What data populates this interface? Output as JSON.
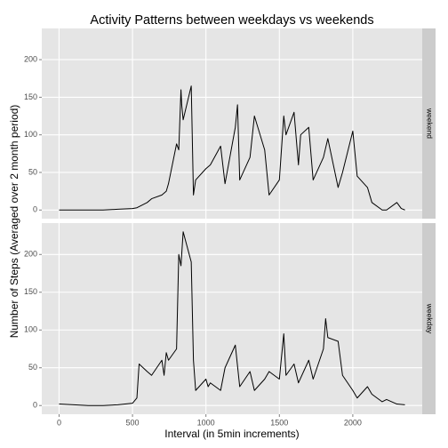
{
  "chart_data": [
    {
      "type": "line",
      "title": "Activity Patterns between weekdays vs weekends",
      "y_label": "Number of Steps (Averaged over 2 month period)",
      "strip": "weekend",
      "xlim": [
        -117.75,
        2472.75
      ],
      "xticks": [
        0,
        500,
        1000,
        1500,
        2000
      ],
      "ylim": [
        -11.5,
        241.5
      ],
      "yticks": [
        0,
        50,
        100,
        150,
        200
      ],
      "grid": true,
      "series": [
        {
          "name": "weekend",
          "color": "#000000",
          "x": [
            0,
            100,
            200,
            300,
            400,
            500,
            530,
            600,
            630,
            700,
            730,
            745,
            800,
            815,
            830,
            835,
            845,
            900,
            915,
            930,
            1000,
            1030,
            1100,
            1130,
            1200,
            1215,
            1230,
            1300,
            1330,
            1400,
            1430,
            1500,
            1530,
            1545,
            1600,
            1630,
            1645,
            1700,
            1730,
            1800,
            1830,
            1900,
            1930,
            2000,
            2030,
            2100,
            2130,
            2200,
            2230,
            2300,
            2330,
            2355
          ],
          "values": [
            0,
            0,
            0,
            0,
            1,
            2,
            3,
            10,
            15,
            20,
            25,
            35,
            88,
            80,
            160,
            140,
            120,
            165,
            20,
            40,
            55,
            60,
            85,
            35,
            110,
            140,
            40,
            70,
            125,
            80,
            20,
            40,
            125,
            100,
            130,
            60,
            100,
            110,
            40,
            70,
            95,
            30,
            50,
            105,
            45,
            30,
            10,
            0,
            0,
            10,
            2,
            0
          ]
        }
      ]
    },
    {
      "type": "line",
      "x_label": "Interval (in 5min increments)",
      "strip": "weekday",
      "xlim": [
        -117.75,
        2472.75
      ],
      "xticks": [
        0,
        500,
        1000,
        1500,
        2000
      ],
      "ylim": [
        -11.5,
        241.5
      ],
      "yticks": [
        0,
        50,
        100,
        150,
        200
      ],
      "grid": true,
      "series": [
        {
          "name": "weekday",
          "color": "#000000",
          "x": [
            0,
            100,
            200,
            300,
            400,
            500,
            530,
            545,
            600,
            630,
            700,
            715,
            730,
            745,
            800,
            815,
            830,
            845,
            900,
            915,
            930,
            1000,
            1015,
            1030,
            1100,
            1130,
            1200,
            1230,
            1300,
            1330,
            1400,
            1430,
            1500,
            1530,
            1545,
            1600,
            1630,
            1700,
            1730,
            1800,
            1815,
            1830,
            1900,
            1930,
            2000,
            2030,
            2100,
            2130,
            2200,
            2230,
            2300,
            2355
          ],
          "values": [
            2,
            1,
            0,
            0,
            1,
            3,
            10,
            55,
            45,
            40,
            60,
            40,
            70,
            60,
            75,
            200,
            185,
            230,
            190,
            60,
            20,
            35,
            25,
            30,
            20,
            50,
            80,
            25,
            45,
            20,
            35,
            45,
            35,
            95,
            40,
            55,
            30,
            60,
            35,
            75,
            115,
            90,
            85,
            40,
            20,
            10,
            25,
            15,
            5,
            8,
            2,
            1
          ]
        }
      ]
    }
  ]
}
